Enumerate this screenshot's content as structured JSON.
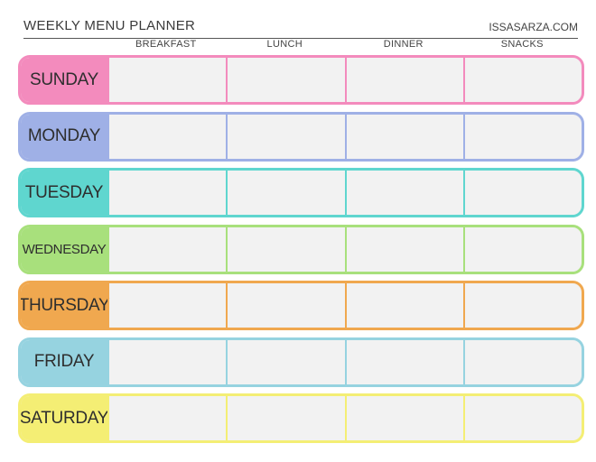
{
  "header": {
    "title": "Weekly Menu Planner",
    "site": "issasarza.com"
  },
  "columns": [
    "Breakfast",
    "Lunch",
    "Dinner",
    "Snacks"
  ],
  "days": [
    {
      "label": "Sunday",
      "color": "#f38bbd"
    },
    {
      "label": "Monday",
      "color": "#9fb0e6"
    },
    {
      "label": "Tuesday",
      "color": "#5fd6cf"
    },
    {
      "label": "Wednesday",
      "color": "#a8e07c"
    },
    {
      "label": "Thursday",
      "color": "#f0a84f"
    },
    {
      "label": "Friday",
      "color": "#96d3e0"
    },
    {
      "label": "Saturday",
      "color": "#f4ee74"
    }
  ]
}
